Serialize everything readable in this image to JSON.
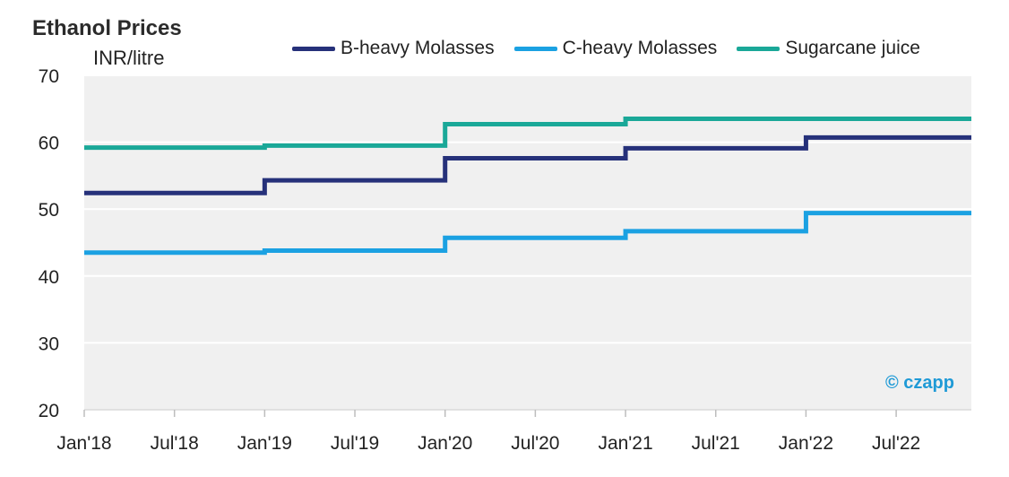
{
  "chart_data": {
    "type": "line",
    "step": true,
    "title": "Ethanol Prices",
    "ylabel": "INR/litre",
    "ylim": [
      20,
      70
    ],
    "yticks": [
      20,
      30,
      40,
      50,
      60,
      70
    ],
    "xticks": [
      "Jan'18",
      "Jul'18",
      "Jan'19",
      "Jul'19",
      "Jan'20",
      "Jul'20",
      "Jan'21",
      "Jul'21",
      "Jan'22",
      "Jul'22"
    ],
    "x": [
      "Jan'18",
      "Jan'19",
      "Jan'20",
      "Jan'21",
      "Jan'22",
      "Dec'22"
    ],
    "series": [
      {
        "name": "B-heavy Molasses",
        "color": "#26317a",
        "values": [
          52.4,
          54.3,
          57.6,
          59.1,
          60.7,
          60.7
        ]
      },
      {
        "name": "C-heavy Molasses",
        "color": "#1ba1e2",
        "values": [
          43.5,
          43.8,
          45.7,
          46.7,
          49.4,
          49.4
        ]
      },
      {
        "name": "Sugarcane juice",
        "color": "#1aa898",
        "values": [
          59.2,
          59.5,
          62.7,
          63.5,
          63.5,
          63.5
        ]
      }
    ],
    "grid": true,
    "legend": "top"
  },
  "watermark": "© czapp"
}
